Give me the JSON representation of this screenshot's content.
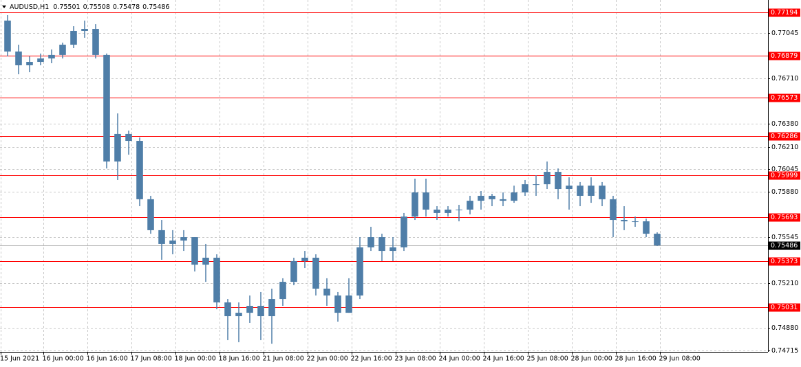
{
  "chart_data": {
    "type": "candlestick",
    "title": "AUDUSD,H1",
    "title_values": [
      0.75501,
      0.75508,
      0.75478,
      0.75486
    ],
    "color": "#4f7ea8",
    "grid": true,
    "xlim": [
      -15.75,
      263.25
    ],
    "xticks": [
      {
        "value": -15.5,
        "label": "15 Jun 2021"
      },
      {
        "value": 0,
        "label": "16 Jun 00:00"
      },
      {
        "value": 16,
        "label": "16 Jun 16:00"
      },
      {
        "value": 32,
        "label": "17 Jun 08:00"
      },
      {
        "value": 48,
        "label": "18 Jun 00:00"
      },
      {
        "value": 64,
        "label": "18 Jun 16:00"
      },
      {
        "value": 80,
        "label": "21 Jun 08:00"
      },
      {
        "value": 96,
        "label": "22 Jun 00:00"
      },
      {
        "value": 112,
        "label": "22 Jun 16:00"
      },
      {
        "value": 128,
        "label": "23 Jun 08:00"
      },
      {
        "value": 144,
        "label": "24 Jun 00:00"
      },
      {
        "value": 160,
        "label": "24 Jun 16:00"
      },
      {
        "value": 176,
        "label": "25 Jun 08:00"
      },
      {
        "value": 192,
        "label": "28 Jun 00:00"
      },
      {
        "value": 208,
        "label": "28 Jun 16:00"
      },
      {
        "value": 224,
        "label": "29 Jun 08:00"
      }
    ],
    "ylim": [
      0.74705,
      0.77287
    ],
    "yticks": [
      0.77045,
      {
        "value": 0.7671,
        "label": "0.76710"
      },
      {
        "value": 0.7638,
        "label": "0.76380"
      },
      {
        "value": 0.7621,
        "label": "0.76210"
      },
      0.76045,
      {
        "value": 0.7588,
        "label": "0.75880"
      },
      0.75545,
      {
        "value": 0.7521,
        "label": "0.75210"
      },
      {
        "value": 0.7488,
        "label": "0.74880"
      },
      0.74715
    ],
    "levels": {
      "color": "#ff0000",
      "values": [
        0.77194,
        0.76879,
        0.76573,
        0.76286,
        0.75999,
        0.75693,
        0.75373,
        0.75031
      ]
    },
    "last_price": 0.75486,
    "x": [
      -13,
      -9,
      -5,
      -1,
      3,
      7,
      11,
      15,
      19,
      23,
      27,
      31,
      35,
      39,
      43,
      47,
      51,
      55,
      59,
      63,
      67,
      71,
      75,
      79,
      83,
      87,
      91,
      95,
      99,
      103,
      107,
      111,
      115,
      119,
      123,
      127,
      131,
      135,
      139,
      143,
      147,
      151,
      155,
      159,
      163,
      167,
      171,
      175,
      179,
      183,
      187,
      191,
      195,
      199,
      203,
      207,
      211,
      215,
      219,
      223
    ],
    "open": [
      0.77136,
      0.76909,
      0.76808,
      0.76833,
      0.76858,
      0.76884,
      0.76959,
      0.7706,
      0.77075,
      0.76884,
      0.76102,
      0.76304,
      0.76253,
      0.75825,
      0.75598,
      0.75497,
      0.75522,
      0.75547,
      0.75345,
      0.75396,
      0.75068,
      0.74967,
      0.74992,
      0.75043,
      0.74967,
      0.75093,
      0.75219,
      0.75371,
      0.75396,
      0.75169,
      0.75119,
      0.74992,
      0.75119,
      0.75472,
      0.75547,
      0.75446,
      0.75472,
      0.75698,
      0.75875,
      0.75749,
      0.75724,
      0.75749,
      0.75749,
      0.75814,
      0.7585,
      0.75825,
      0.75814,
      0.75875,
      0.75935,
      0.75935,
      0.76026,
      0.759,
      0.75925,
      0.7585,
      0.75925,
      0.75825,
      0.75673,
      0.75663,
      0.75663,
      0.75572
    ],
    "high": [
      0.77176,
      0.76959,
      0.76873,
      0.76894,
      0.76924,
      0.76974,
      0.77095,
      0.77136,
      0.7711,
      0.76894,
      0.76455,
      0.76329,
      0.76278,
      0.7585,
      0.75673,
      0.75598,
      0.75598,
      0.75547,
      0.75497,
      0.75421,
      0.75093,
      0.75068,
      0.75119,
      0.75144,
      0.75169,
      0.75245,
      0.75396,
      0.75446,
      0.75421,
      0.75245,
      0.75144,
      0.75245,
      0.75547,
      0.75623,
      0.75572,
      0.75547,
      0.75724,
      0.75976,
      0.75976,
      0.75774,
      0.75774,
      0.75784,
      0.7585,
      0.75885,
      0.75865,
      0.75875,
      0.75925,
      0.75966,
      0.76001,
      0.76102,
      0.76051,
      0.75986,
      0.75951,
      0.75986,
      0.75951,
      0.7585,
      0.75774,
      0.75698,
      0.75683,
      0.75582
    ],
    "low": [
      0.76873,
      0.76742,
      0.76757,
      0.76808,
      0.76823,
      0.76858,
      0.76934,
      0.7701,
      0.76858,
      0.76051,
      0.75966,
      0.76152,
      0.75774,
      0.75572,
      0.75381,
      0.75421,
      0.75446,
      0.75295,
      0.75219,
      0.75018,
      0.74791,
      0.74776,
      0.74917,
      0.74791,
      0.74765,
      0.75043,
      0.75194,
      0.7532,
      0.75119,
      0.75043,
      0.74927,
      0.74992,
      0.75093,
      0.75446,
      0.75371,
      0.75371,
      0.75446,
      0.75673,
      0.75698,
      0.75673,
      0.75698,
      0.75663,
      0.75714,
      0.75749,
      0.75774,
      0.75774,
      0.75799,
      0.7585,
      0.7585,
      0.759,
      0.75825,
      0.75749,
      0.75774,
      0.75799,
      0.75774,
      0.75547,
      0.75598,
      0.75623,
      0.75547,
      0.75482
    ],
    "close": [
      0.76909,
      0.76808,
      0.76833,
      0.76858,
      0.76884,
      0.76959,
      0.7706,
      0.77075,
      0.76884,
      0.76102,
      0.76304,
      0.76253,
      0.75825,
      0.75598,
      0.75497,
      0.75522,
      0.75547,
      0.75345,
      0.75396,
      0.75068,
      0.74967,
      0.74992,
      0.75043,
      0.74967,
      0.75093,
      0.75219,
      0.75371,
      0.75396,
      0.75169,
      0.75119,
      0.74992,
      0.75119,
      0.75472,
      0.75547,
      0.75446,
      0.75472,
      0.75698,
      0.75875,
      0.75749,
      0.75724,
      0.75749,
      0.75749,
      0.75814,
      0.7585,
      0.75825,
      0.75814,
      0.75875,
      0.75935,
      0.75935,
      0.76026,
      0.759,
      0.75925,
      0.7585,
      0.75925,
      0.75825,
      0.75673,
      0.75663,
      0.75663,
      0.75572,
      0.75486
    ]
  }
}
